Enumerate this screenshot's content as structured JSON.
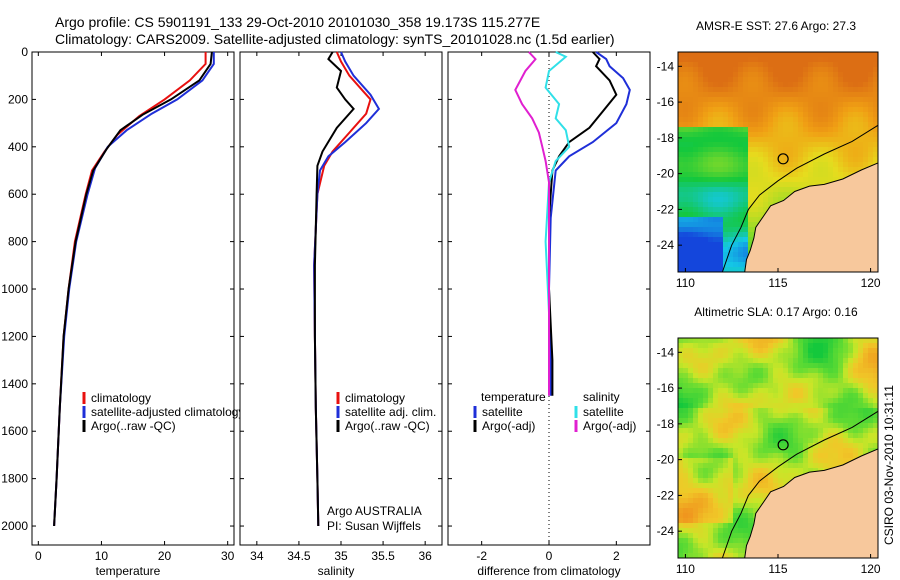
{
  "header": {
    "line1": "Argo profile: CS 5901191_133 29-Oct-2010 20101030_358 19.173S 115.277E",
    "line2": "Climatology: CARS2009. Satellite-adjusted climatology: synTS_20101028.nc (1.5d earlier)"
  },
  "side_label": "CSIRO 03-Nov-2010 10:31:11",
  "colors": {
    "climatology": "#e8100f",
    "satellite": "#1f2fd8",
    "argo": "#000000",
    "sal_satellite": "#30e0e8",
    "sal_argo": "#e020d0",
    "land": "#f7c89c",
    "coast": "#000000"
  },
  "chart_data": [
    {
      "type": "line",
      "xlabel": "temperature",
      "ylabel": "",
      "xlim": [
        -1,
        31
      ],
      "ylim": [
        0,
        2080
      ],
      "xticks": [
        0,
        10,
        20,
        30
      ],
      "yticks": [
        0,
        200,
        400,
        600,
        800,
        1000,
        1200,
        1400,
        1600,
        1800,
        2000
      ],
      "y_reversed": true,
      "legend": [
        "climatology",
        "satellite-adjusted climatology",
        "Argo(..raw -QC)"
      ],
      "series": [
        {
          "name": "climatology",
          "color_key": "climatology",
          "x": [
            26.5,
            26.5,
            24,
            20,
            16,
            12.5,
            10.5,
            8.5,
            7.5,
            5.8,
            4.8,
            4.0,
            3.4,
            2.9,
            2.5
          ],
          "y": [
            0,
            50,
            120,
            200,
            270,
            350,
            420,
            500,
            600,
            800,
            1000,
            1200,
            1500,
            1800,
            2000
          ]
        },
        {
          "name": "satellite-adjusted climatology",
          "color_key": "satellite",
          "x": [
            27.8,
            27.8,
            26,
            22,
            18,
            14,
            11,
            9,
            7.8,
            6.0,
            4.9,
            4.1,
            3.4,
            2.9,
            2.5
          ],
          "y": [
            0,
            50,
            120,
            200,
            260,
            330,
            400,
            490,
            600,
            800,
            1000,
            1200,
            1500,
            1800,
            2000
          ]
        },
        {
          "name": "Argo(..raw -QC)",
          "color_key": "argo",
          "x": [
            27.5,
            27.3,
            25.5,
            21,
            16.5,
            13,
            10.8,
            8.7,
            7.6,
            5.9,
            4.8,
            4.0,
            3.4,
            2.9,
            2.5
          ],
          "y": [
            0,
            50,
            120,
            200,
            265,
            330,
            410,
            500,
            600,
            800,
            1000,
            1200,
            1500,
            1800,
            2000
          ]
        }
      ]
    },
    {
      "type": "line",
      "xlabel": "salinity",
      "ylabel": "",
      "xlim": [
        33.8,
        36.2
      ],
      "ylim": [
        0,
        2080
      ],
      "xticks": [
        34,
        34.5,
        35,
        35.5,
        36
      ],
      "xtick_labels": [
        "34",
        "34.5",
        "35",
        "35.5",
        "36"
      ],
      "y_reversed": true,
      "legend": [
        "climatology",
        "satellite adj. clim.",
        "Argo(..raw -QC)"
      ],
      "annotations": [
        "Argo AUSTRALIA",
        "PI: Susan Wijffels"
      ],
      "series": [
        {
          "name": "climatology",
          "color_key": "climatology",
          "x": [
            34.95,
            35.0,
            35.1,
            35.25,
            35.35,
            35.3,
            35.1,
            34.9,
            34.8,
            34.72,
            34.68,
            34.69,
            34.7,
            34.72,
            34.73
          ],
          "y": [
            0,
            40,
            100,
            160,
            200,
            260,
            340,
            420,
            480,
            600,
            900,
            1200,
            1500,
            1800,
            2000
          ]
        },
        {
          "name": "satellite adj. clim.",
          "color_key": "satellite",
          "x": [
            35.0,
            35.05,
            35.15,
            35.35,
            35.45,
            35.3,
            35.05,
            34.85,
            34.75,
            34.72,
            34.68,
            34.69,
            34.7,
            34.72,
            34.73
          ],
          "y": [
            0,
            40,
            100,
            180,
            240,
            300,
            380,
            440,
            500,
            600,
            900,
            1200,
            1500,
            1800,
            2000
          ]
        },
        {
          "name": "Argo(..raw -QC)",
          "color_key": "argo",
          "x": [
            34.9,
            34.85,
            35.0,
            34.95,
            35.05,
            35.15,
            34.95,
            34.78,
            34.72,
            34.71,
            34.69,
            34.69,
            34.7,
            34.72,
            34.73
          ],
          "y": [
            0,
            30,
            80,
            150,
            200,
            240,
            320,
            420,
            480,
            600,
            900,
            1200,
            1500,
            1800,
            2000
          ]
        }
      ]
    },
    {
      "type": "line",
      "xlabel": "difference from climatology",
      "ylabel": "",
      "xlim": [
        -3,
        3
      ],
      "ylim": [
        0,
        2080
      ],
      "xticks": [
        -2,
        0,
        2
      ],
      "y_reversed": true,
      "legend_groups": [
        {
          "title": "temperature",
          "entries": [
            "satellite",
            "Argo(-adj)"
          ]
        },
        {
          "title": "salinity",
          "entries": [
            "satellite",
            "Argo(-adj)"
          ]
        }
      ],
      "series": [
        {
          "name": "temperature satellite",
          "color_key": "satellite",
          "x": [
            1.4,
            1.7,
            1.8,
            2.2,
            2.4,
            2.3,
            2.0,
            1.3,
            0.6,
            0.2,
            0.05,
            0.0,
            0.05,
            0.05
          ],
          "y": [
            0,
            30,
            60,
            110,
            160,
            220,
            300,
            380,
            440,
            500,
            700,
            1000,
            1300,
            1450
          ]
        },
        {
          "name": "temperature Argo(-adj)",
          "color_key": "argo",
          "x": [
            1.3,
            1.5,
            1.4,
            1.8,
            2.0,
            1.6,
            1.2,
            0.6,
            0.3,
            0.1,
            0.0,
            0.0,
            0.1,
            0.1
          ],
          "y": [
            0,
            30,
            60,
            120,
            180,
            250,
            320,
            380,
            440,
            500,
            700,
            1000,
            1300,
            1450
          ]
        },
        {
          "name": "salinity satellite",
          "color_key": "sal_satellite",
          "x": [
            0.2,
            0.5,
            0.0,
            -0.1,
            0.3,
            0.2,
            0.5,
            0.6,
            0.2,
            0.0,
            -0.1,
            0.0,
            0.0
          ],
          "y": [
            0,
            20,
            80,
            150,
            220,
            280,
            330,
            400,
            460,
            550,
            800,
            1100,
            1450
          ]
        },
        {
          "name": "salinity Argo(-adj)",
          "color_key": "sal_argo",
          "x": [
            -0.6,
            -0.4,
            -0.7,
            -1.0,
            -0.8,
            -0.5,
            -0.3,
            -0.2,
            -0.1,
            0.0,
            0.0,
            0.0
          ],
          "y": [
            0,
            30,
            80,
            160,
            220,
            280,
            340,
            400,
            460,
            550,
            800,
            1450
          ]
        }
      ]
    }
  ],
  "maps": [
    {
      "title": "AMSR-E SST: 27.6 Argo: 27.3",
      "xticks": [
        "110",
        "115",
        "120"
      ],
      "yticks": [
        "-14",
        "-16",
        "-18",
        "-20",
        "-22",
        "-24"
      ],
      "palette": "sst"
    },
    {
      "title": "Altimetric SLA: 0.17 Argo: 0.16",
      "xticks": [
        "110",
        "115",
        "120"
      ],
      "yticks": [
        "-14",
        "-16",
        "-18",
        "-20",
        "-22",
        "-24"
      ],
      "palette": "sla"
    }
  ]
}
